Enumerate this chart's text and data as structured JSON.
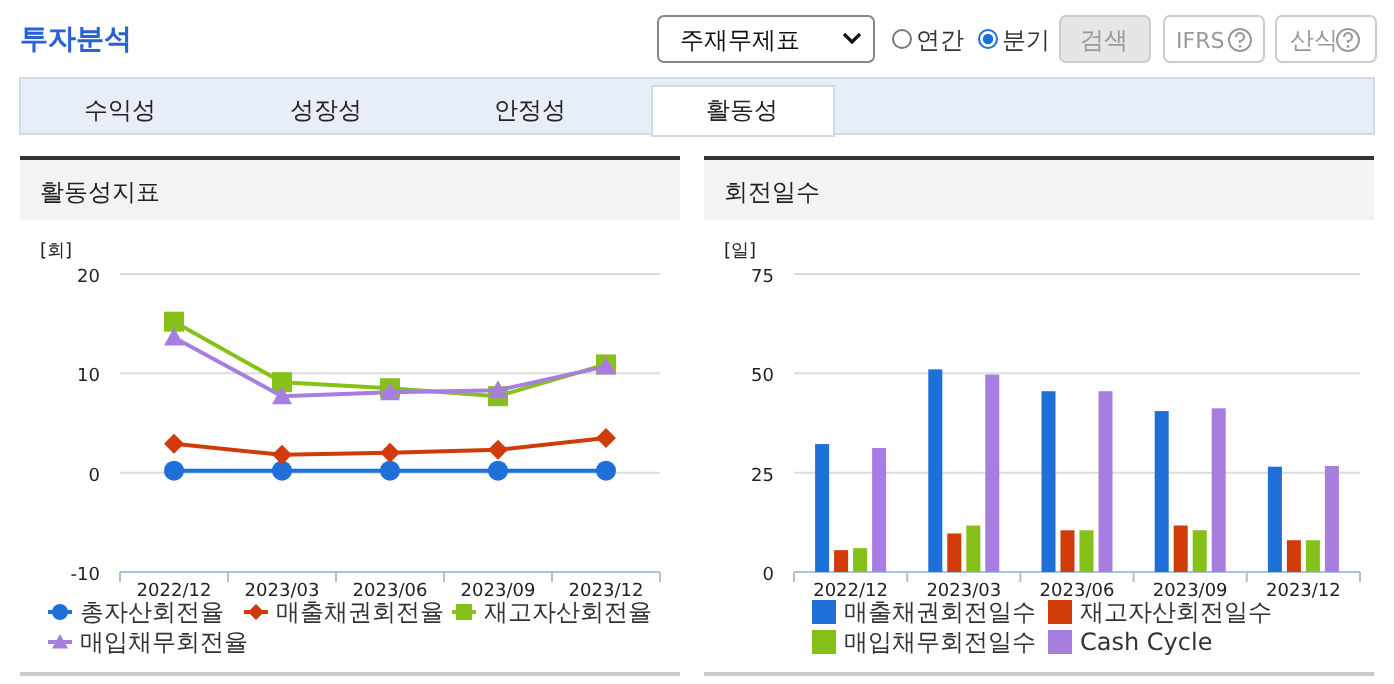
{
  "chart_data": [
    {
      "type": "other",
      "title": "투자분석",
      "annotations": [
        "주재무제표",
        "연간",
        "분기",
        "검색",
        "IFRS",
        "산식",
        "수익성",
        "성장성",
        "안정성",
        "활동성"
      ]
    },
    {
      "type": "line",
      "title": "활동성지표",
      "ylabel": "[회]",
      "categories": [
        "2022/12",
        "2023/03",
        "2023/06",
        "2023/09",
        "2023/12"
      ],
      "ylim": [
        -10,
        20
      ],
      "yticks": [
        -10,
        0,
        10,
        20
      ],
      "grid": "y",
      "legend": "bottom",
      "series": [
        {
          "name": "총자산회전율",
          "color": "#1f6fd9",
          "marker": "circle",
          "values": [
            0.2,
            0.2,
            0.2,
            0.2,
            0.2
          ]
        },
        {
          "name": "매출채권회전율",
          "color": "#d13b0a",
          "marker": "diamond",
          "values": [
            2.9,
            1.8,
            2.0,
            2.3,
            3.5
          ]
        },
        {
          "name": "재고자산회전율",
          "color": "#86c11a",
          "marker": "square",
          "values": [
            15.2,
            9.1,
            8.5,
            7.7,
            10.9
          ]
        },
        {
          "name": "매입채무회전율",
          "color": "#a77ee0",
          "marker": "triangle",
          "values": [
            13.6,
            7.7,
            8.1,
            8.3,
            10.7
          ]
        }
      ]
    },
    {
      "type": "bar",
      "title": "회전일수",
      "ylabel": "[일]",
      "categories": [
        "2022/12",
        "2023/03",
        "2023/06",
        "2023/09",
        "2023/12"
      ],
      "ylim": [
        0,
        75
      ],
      "yticks": [
        0,
        25,
        50,
        75
      ],
      "grid": "y",
      "legend": "bottom",
      "series": [
        {
          "name": "매출채권회전일수",
          "color": "#1f6fd9",
          "values": [
            32.2,
            51.0,
            45.5,
            40.5,
            26.5
          ]
        },
        {
          "name": "재고자산회전일수",
          "color": "#d13b0a",
          "values": [
            5.5,
            9.7,
            10.5,
            11.7,
            8.0
          ]
        },
        {
          "name": "매입채무회전일수",
          "color": "#86c11a",
          "values": [
            6.0,
            11.7,
            10.5,
            10.5,
            8.0
          ]
        },
        {
          "name": "Cash Cycle",
          "color": "#a77ee0",
          "values": [
            31.2,
            49.7,
            45.5,
            41.2,
            26.7
          ]
        }
      ]
    }
  ]
}
